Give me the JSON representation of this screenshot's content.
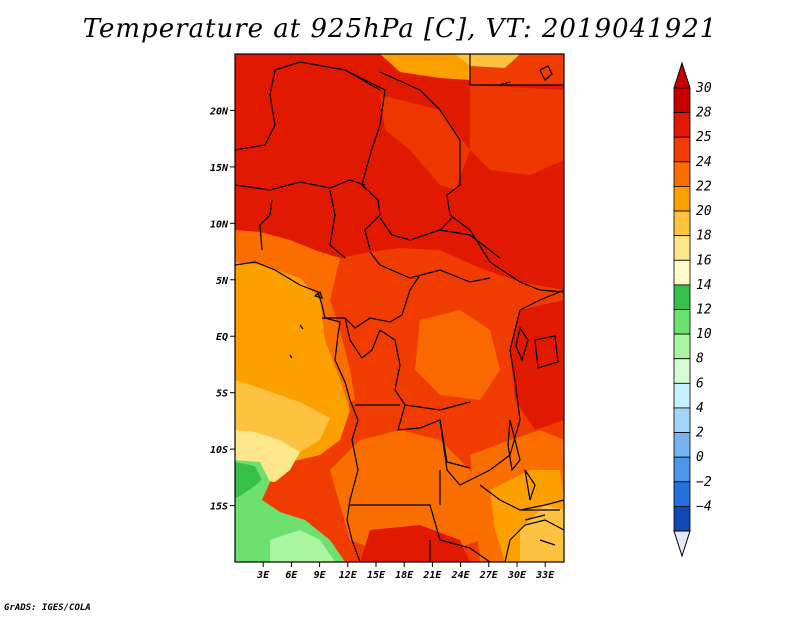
{
  "title": "Temperature at 925hPa [C], VT: 2019041921",
  "footer": "GrADS: IGES/COLA",
  "map": {
    "lon_range": [
      0,
      35
    ],
    "lat_range": [
      -20,
      25
    ],
    "x_ticks": [
      {
        "lon": 3,
        "label": "3E"
      },
      {
        "lon": 6,
        "label": "6E"
      },
      {
        "lon": 9,
        "label": "9E"
      },
      {
        "lon": 12,
        "label": "12E"
      },
      {
        "lon": 15,
        "label": "15E"
      },
      {
        "lon": 18,
        "label": "18E"
      },
      {
        "lon": 21,
        "label": "21E"
      },
      {
        "lon": 24,
        "label": "24E"
      },
      {
        "lon": 27,
        "label": "27E"
      },
      {
        "lon": 30,
        "label": "30E"
      },
      {
        "lon": 33,
        "label": "33E"
      }
    ],
    "y_ticks": [
      {
        "lat": 20,
        "label": "20N"
      },
      {
        "lat": 15,
        "label": "15N"
      },
      {
        "lat": 10,
        "label": "10N"
      },
      {
        "lat": 5,
        "label": "5N"
      },
      {
        "lat": 0,
        "label": "EQ"
      },
      {
        "lat": -5,
        "label": "5S"
      },
      {
        "lat": -10,
        "label": "10S"
      },
      {
        "lat": -15,
        "label": "15S"
      }
    ]
  },
  "colorbar": {
    "levels": [
      {
        "label": "30",
        "color": "#c80000"
      },
      {
        "label": "28",
        "color": "#e11900"
      },
      {
        "label": "25",
        "color": "#f03c00"
      },
      {
        "label": "24",
        "color": "#fa6e00"
      },
      {
        "label": "22",
        "color": "#fca000"
      },
      {
        "label": "20",
        "color": "#fcc240"
      },
      {
        "label": "18",
        "color": "#fde68c"
      },
      {
        "label": "16",
        "color": "#fefcc8"
      },
      {
        "label": "14",
        "color": "#36c04a"
      },
      {
        "label": "12",
        "color": "#6ee070"
      },
      {
        "label": "10",
        "color": "#aaf5a0"
      },
      {
        "label": "8",
        "color": "#d6fad2"
      },
      {
        "label": "6",
        "color": "#c8f0ff"
      },
      {
        "label": "4",
        "color": "#a4d4fa"
      },
      {
        "label": "2",
        "color": "#78b4f0"
      },
      {
        "label": "0",
        "color": "#4a96e8"
      },
      {
        "label": "−2",
        "color": "#2470dc"
      },
      {
        "label": "−4",
        "color": "#1048b4"
      }
    ],
    "under_color": "#0a0a6e",
    "over_color": "#e6e6fa"
  }
}
